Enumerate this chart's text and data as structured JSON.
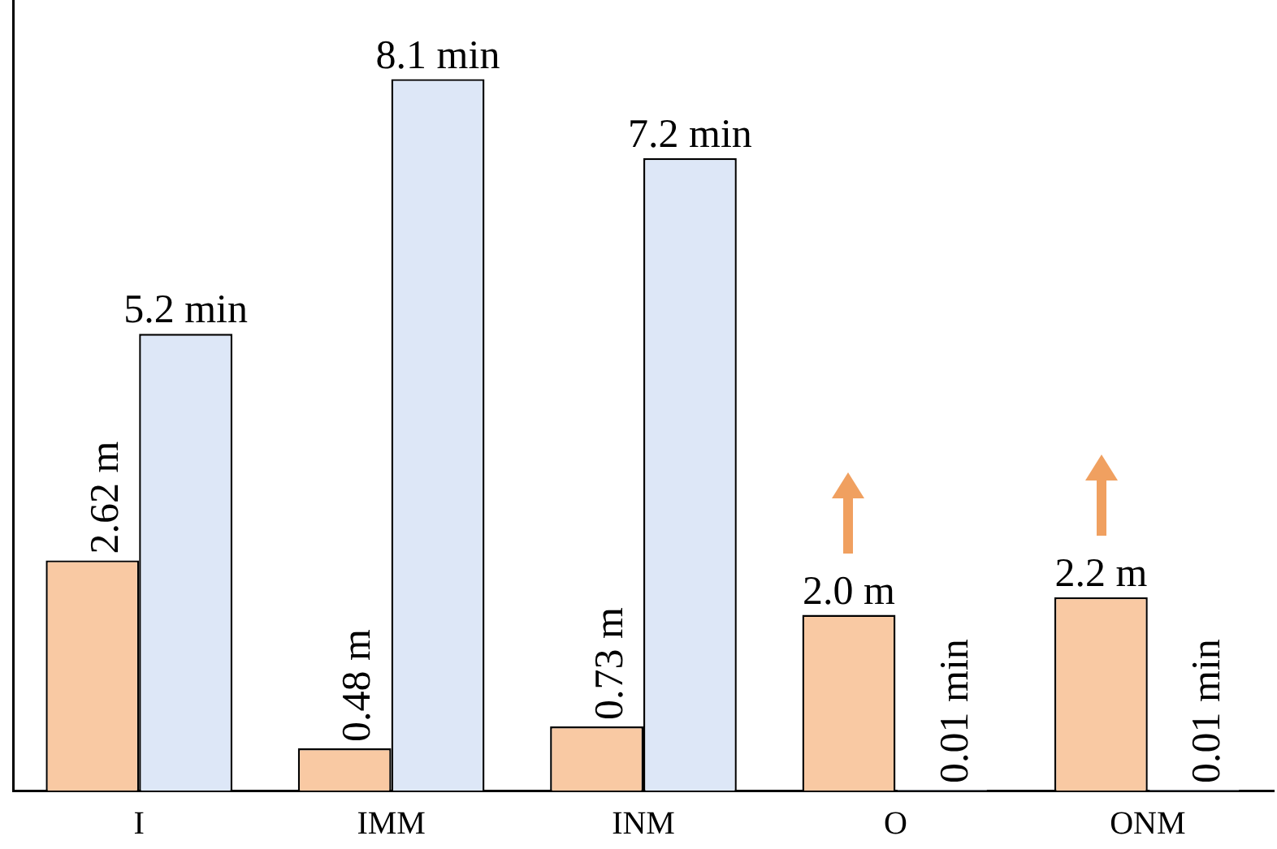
{
  "chart_data": {
    "type": "bar",
    "categories": [
      "I",
      "IMM",
      "INM",
      "O",
      "ONM"
    ],
    "series": [
      {
        "color": "#f9c9a3",
        "values": [
          2.62,
          0.48,
          0.73,
          2.0,
          2.2
        ],
        "value_labels": [
          "2.62 m",
          "0.48 m",
          "0.73 m",
          "2.0 m",
          "2.2 m"
        ]
      },
      {
        "color": "#dde7f7",
        "values": [
          5.2,
          8.1,
          7.2,
          0.01,
          0.01
        ],
        "value_labels": [
          "5.2 min",
          "8.1 min",
          "7.2 min",
          "0.01 min",
          "0.01 min"
        ]
      }
    ],
    "tick_labels": "x",
    "grid": false,
    "legend": false
  }
}
